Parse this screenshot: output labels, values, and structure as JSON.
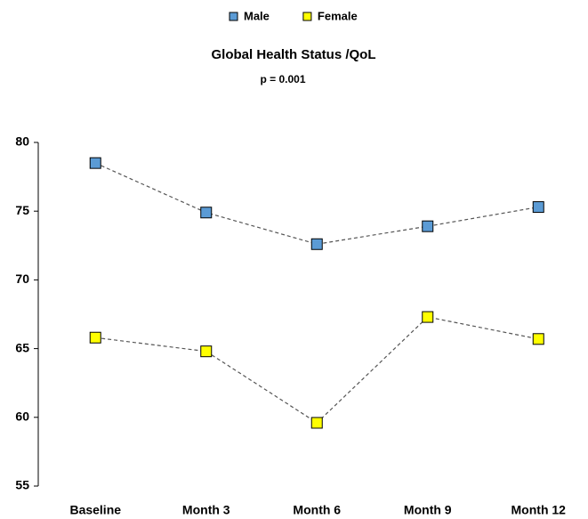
{
  "chart_data": {
    "type": "line",
    "title": "Global Health Status /QoL",
    "subtitle": "p = 0.001",
    "categories": [
      "Baseline",
      "Month 3",
      "Month 6",
      "Month 9",
      "Month 12"
    ],
    "series": [
      {
        "name": "Male",
        "color": "#5b9bd5",
        "values": [
          78.5,
          74.9,
          72.6,
          73.9,
          75.3
        ]
      },
      {
        "name": "Female",
        "color": "#ffff00",
        "values": [
          65.8,
          64.8,
          59.6,
          67.3,
          65.7
        ]
      }
    ],
    "ylim": [
      55,
      80
    ],
    "yticks": [
      55,
      60,
      65,
      70,
      75,
      80
    ],
    "legend": "top",
    "grid": false
  }
}
